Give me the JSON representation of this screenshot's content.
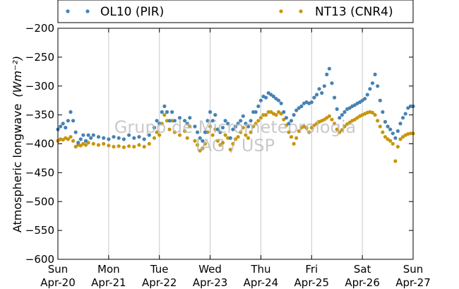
{
  "chart_data": {
    "type": "scatter",
    "title": "",
    "xlabel": "",
    "ylabel": "Atmospheric longwave",
    "ylabel_unit": "(Wm⁻²)",
    "ylim": [
      -600,
      -200
    ],
    "yticks": [
      -600,
      -550,
      -500,
      -450,
      -400,
      -350,
      -300,
      -250,
      -200
    ],
    "xlim": [
      0,
      7
    ],
    "x_unit": "days from Sun Apr-20",
    "xticks": [
      {
        "day": 0,
        "label1": "Sun",
        "label2": "Apr-20"
      },
      {
        "day": 1,
        "label1": "Mon",
        "label2": "Apr-21"
      },
      {
        "day": 2,
        "label1": "Tue",
        "label2": "Apr-22"
      },
      {
        "day": 3,
        "label1": "Wed",
        "label2": "Apr-23"
      },
      {
        "day": 4,
        "label1": "Thu",
        "label2": "Apr-24"
      },
      {
        "day": 5,
        "label1": "Fri",
        "label2": "Apr-25"
      },
      {
        "day": 6,
        "label1": "Sat",
        "label2": "Apr-26"
      },
      {
        "day": 7,
        "label1": "Sun",
        "label2": "Apr-27"
      }
    ],
    "grid": "vertical",
    "legend_position": "top",
    "series": [
      {
        "name": "OL10 (PIR)",
        "color": "#4682b4",
        "points": [
          [
            0.0,
            -375
          ],
          [
            0.05,
            -370
          ],
          [
            0.1,
            -365
          ],
          [
            0.15,
            -372
          ],
          [
            0.2,
            -360
          ],
          [
            0.25,
            -345
          ],
          [
            0.3,
            -360
          ],
          [
            0.35,
            -380
          ],
          [
            0.4,
            -398
          ],
          [
            0.45,
            -392
          ],
          [
            0.5,
            -385
          ],
          [
            0.55,
            -395
          ],
          [
            0.6,
            -385
          ],
          [
            0.65,
            -390
          ],
          [
            0.7,
            -385
          ],
          [
            0.8,
            -388
          ],
          [
            0.9,
            -390
          ],
          [
            1.0,
            -392
          ],
          [
            1.1,
            -388
          ],
          [
            1.2,
            -390
          ],
          [
            1.3,
            -392
          ],
          [
            1.4,
            -385
          ],
          [
            1.5,
            -390
          ],
          [
            1.6,
            -388
          ],
          [
            1.7,
            -392
          ],
          [
            1.8,
            -385
          ],
          [
            1.9,
            -372
          ],
          [
            1.95,
            -360
          ],
          [
            2.0,
            -365
          ],
          [
            2.05,
            -345
          ],
          [
            2.1,
            -335
          ],
          [
            2.15,
            -345
          ],
          [
            2.2,
            -360
          ],
          [
            2.25,
            -345
          ],
          [
            2.3,
            -360
          ],
          [
            2.4,
            -355
          ],
          [
            2.5,
            -360
          ],
          [
            2.55,
            -365
          ],
          [
            2.6,
            -355
          ],
          [
            2.7,
            -370
          ],
          [
            2.75,
            -380
          ],
          [
            2.8,
            -390
          ],
          [
            2.85,
            -395
          ],
          [
            2.9,
            -380
          ],
          [
            2.95,
            -360
          ],
          [
            3.0,
            -345
          ],
          [
            3.05,
            -360
          ],
          [
            3.1,
            -350
          ],
          [
            3.15,
            -375
          ],
          [
            3.2,
            -380
          ],
          [
            3.25,
            -372
          ],
          [
            3.3,
            -360
          ],
          [
            3.35,
            -365
          ],
          [
            3.4,
            -390
          ],
          [
            3.45,
            -375
          ],
          [
            3.5,
            -370
          ],
          [
            3.55,
            -365
          ],
          [
            3.6,
            -360
          ],
          [
            3.65,
            -352
          ],
          [
            3.7,
            -365
          ],
          [
            3.75,
            -370
          ],
          [
            3.8,
            -360
          ],
          [
            3.85,
            -345
          ],
          [
            3.9,
            -345
          ],
          [
            3.95,
            -335
          ],
          [
            4.0,
            -325
          ],
          [
            4.05,
            -318
          ],
          [
            4.1,
            -320
          ],
          [
            4.15,
            -312
          ],
          [
            4.2,
            -315
          ],
          [
            4.25,
            -318
          ],
          [
            4.3,
            -322
          ],
          [
            4.35,
            -325
          ],
          [
            4.4,
            -330
          ],
          [
            4.45,
            -345
          ],
          [
            4.5,
            -355
          ],
          [
            4.55,
            -365
          ],
          [
            4.6,
            -360
          ],
          [
            4.65,
            -350
          ],
          [
            4.7,
            -342
          ],
          [
            4.75,
            -338
          ],
          [
            4.8,
            -335
          ],
          [
            4.85,
            -330
          ],
          [
            4.9,
            -328
          ],
          [
            4.95,
            -330
          ],
          [
            5.0,
            -328
          ],
          [
            5.05,
            -320
          ],
          [
            5.1,
            -315
          ],
          [
            5.15,
            -305
          ],
          [
            5.2,
            -312
          ],
          [
            5.25,
            -300
          ],
          [
            5.3,
            -280
          ],
          [
            5.35,
            -270
          ],
          [
            5.4,
            -295
          ],
          [
            5.45,
            -320
          ],
          [
            5.5,
            -340
          ],
          [
            5.55,
            -355
          ],
          [
            5.6,
            -350
          ],
          [
            5.65,
            -345
          ],
          [
            5.7,
            -340
          ],
          [
            5.75,
            -338
          ],
          [
            5.8,
            -335
          ],
          [
            5.85,
            -333
          ],
          [
            5.9,
            -330
          ],
          [
            5.95,
            -328
          ],
          [
            6.0,
            -325
          ],
          [
            6.05,
            -322
          ],
          [
            6.1,
            -315
          ],
          [
            6.15,
            -305
          ],
          [
            6.2,
            -295
          ],
          [
            6.25,
            -280
          ],
          [
            6.3,
            -300
          ],
          [
            6.35,
            -325
          ],
          [
            6.4,
            -345
          ],
          [
            6.45,
            -362
          ],
          [
            6.5,
            -370
          ],
          [
            6.55,
            -375
          ],
          [
            6.6,
            -382
          ],
          [
            6.65,
            -390
          ],
          [
            6.7,
            -378
          ],
          [
            6.75,
            -365
          ],
          [
            6.8,
            -355
          ],
          [
            6.85,
            -348
          ],
          [
            6.9,
            -338
          ],
          [
            6.95,
            -335
          ],
          [
            7.0,
            -335
          ]
        ]
      },
      {
        "name": "NT13 (CNR4)",
        "color": "#c8960c",
        "points": [
          [
            0.0,
            -395
          ],
          [
            0.05,
            -392
          ],
          [
            0.1,
            -393
          ],
          [
            0.15,
            -390
          ],
          [
            0.2,
            -392
          ],
          [
            0.25,
            -388
          ],
          [
            0.3,
            -395
          ],
          [
            0.35,
            -405
          ],
          [
            0.4,
            -402
          ],
          [
            0.45,
            -403
          ],
          [
            0.5,
            -400
          ],
          [
            0.55,
            -402
          ],
          [
            0.6,
            -398
          ],
          [
            0.7,
            -400
          ],
          [
            0.8,
            -402
          ],
          [
            0.9,
            -400
          ],
          [
            1.0,
            -403
          ],
          [
            1.1,
            -405
          ],
          [
            1.2,
            -404
          ],
          [
            1.3,
            -406
          ],
          [
            1.4,
            -404
          ],
          [
            1.5,
            -405
          ],
          [
            1.6,
            -402
          ],
          [
            1.7,
            -405
          ],
          [
            1.8,
            -400
          ],
          [
            1.9,
            -390
          ],
          [
            1.95,
            -380
          ],
          [
            2.0,
            -385
          ],
          [
            2.05,
            -365
          ],
          [
            2.1,
            -350
          ],
          [
            2.15,
            -360
          ],
          [
            2.2,
            -375
          ],
          [
            2.25,
            -360
          ],
          [
            2.3,
            -380
          ],
          [
            2.4,
            -385
          ],
          [
            2.5,
            -378
          ],
          [
            2.55,
            -390
          ],
          [
            2.6,
            -370
          ],
          [
            2.7,
            -395
          ],
          [
            2.75,
            -402
          ],
          [
            2.8,
            -412
          ],
          [
            2.85,
            -408
          ],
          [
            2.9,
            -400
          ],
          [
            2.95,
            -380
          ],
          [
            3.0,
            -370
          ],
          [
            3.05,
            -385
          ],
          [
            3.1,
            -375
          ],
          [
            3.15,
            -395
          ],
          [
            3.2,
            -402
          ],
          [
            3.25,
            -398
          ],
          [
            3.3,
            -385
          ],
          [
            3.35,
            -390
          ],
          [
            3.4,
            -410
          ],
          [
            3.45,
            -400
          ],
          [
            3.5,
            -392
          ],
          [
            3.55,
            -388
          ],
          [
            3.6,
            -380
          ],
          [
            3.65,
            -372
          ],
          [
            3.7,
            -385
          ],
          [
            3.75,
            -390
          ],
          [
            3.8,
            -380
          ],
          [
            3.85,
            -370
          ],
          [
            3.9,
            -365
          ],
          [
            3.95,
            -360
          ],
          [
            4.0,
            -355
          ],
          [
            4.05,
            -350
          ],
          [
            4.1,
            -350
          ],
          [
            4.15,
            -345
          ],
          [
            4.2,
            -345
          ],
          [
            4.25,
            -348
          ],
          [
            4.3,
            -350
          ],
          [
            4.35,
            -345
          ],
          [
            4.4,
            -348
          ],
          [
            4.45,
            -358
          ],
          [
            4.5,
            -368
          ],
          [
            4.55,
            -380
          ],
          [
            4.6,
            -388
          ],
          [
            4.65,
            -400
          ],
          [
            4.7,
            -390
          ],
          [
            4.75,
            -378
          ],
          [
            4.8,
            -372
          ],
          [
            4.85,
            -370
          ],
          [
            4.9,
            -373
          ],
          [
            4.95,
            -380
          ],
          [
            5.0,
            -372
          ],
          [
            5.05,
            -368
          ],
          [
            5.1,
            -365
          ],
          [
            5.15,
            -362
          ],
          [
            5.2,
            -360
          ],
          [
            5.25,
            -358
          ],
          [
            5.3,
            -355
          ],
          [
            5.35,
            -352
          ],
          [
            5.4,
            -358
          ],
          [
            5.45,
            -365
          ],
          [
            5.5,
            -375
          ],
          [
            5.55,
            -380
          ],
          [
            5.6,
            -376
          ],
          [
            5.65,
            -370
          ],
          [
            5.7,
            -366
          ],
          [
            5.75,
            -363
          ],
          [
            5.8,
            -360
          ],
          [
            5.85,
            -358
          ],
          [
            5.9,
            -355
          ],
          [
            5.95,
            -352
          ],
          [
            6.0,
            -350
          ],
          [
            6.05,
            -348
          ],
          [
            6.1,
            -346
          ],
          [
            6.15,
            -345
          ],
          [
            6.2,
            -346
          ],
          [
            6.25,
            -350
          ],
          [
            6.3,
            -360
          ],
          [
            6.35,
            -370
          ],
          [
            6.4,
            -380
          ],
          [
            6.45,
            -388
          ],
          [
            6.5,
            -392
          ],
          [
            6.55,
            -395
          ],
          [
            6.6,
            -400
          ],
          [
            6.65,
            -430
          ],
          [
            6.7,
            -405
          ],
          [
            6.75,
            -392
          ],
          [
            6.8,
            -388
          ],
          [
            6.85,
            -385
          ],
          [
            6.9,
            -383
          ],
          [
            6.95,
            -382
          ],
          [
            7.0,
            -382
          ]
        ]
      }
    ]
  },
  "watermark": {
    "line1": "Grupo de Micrometeorologia",
    "line2": "IAG / USP"
  }
}
